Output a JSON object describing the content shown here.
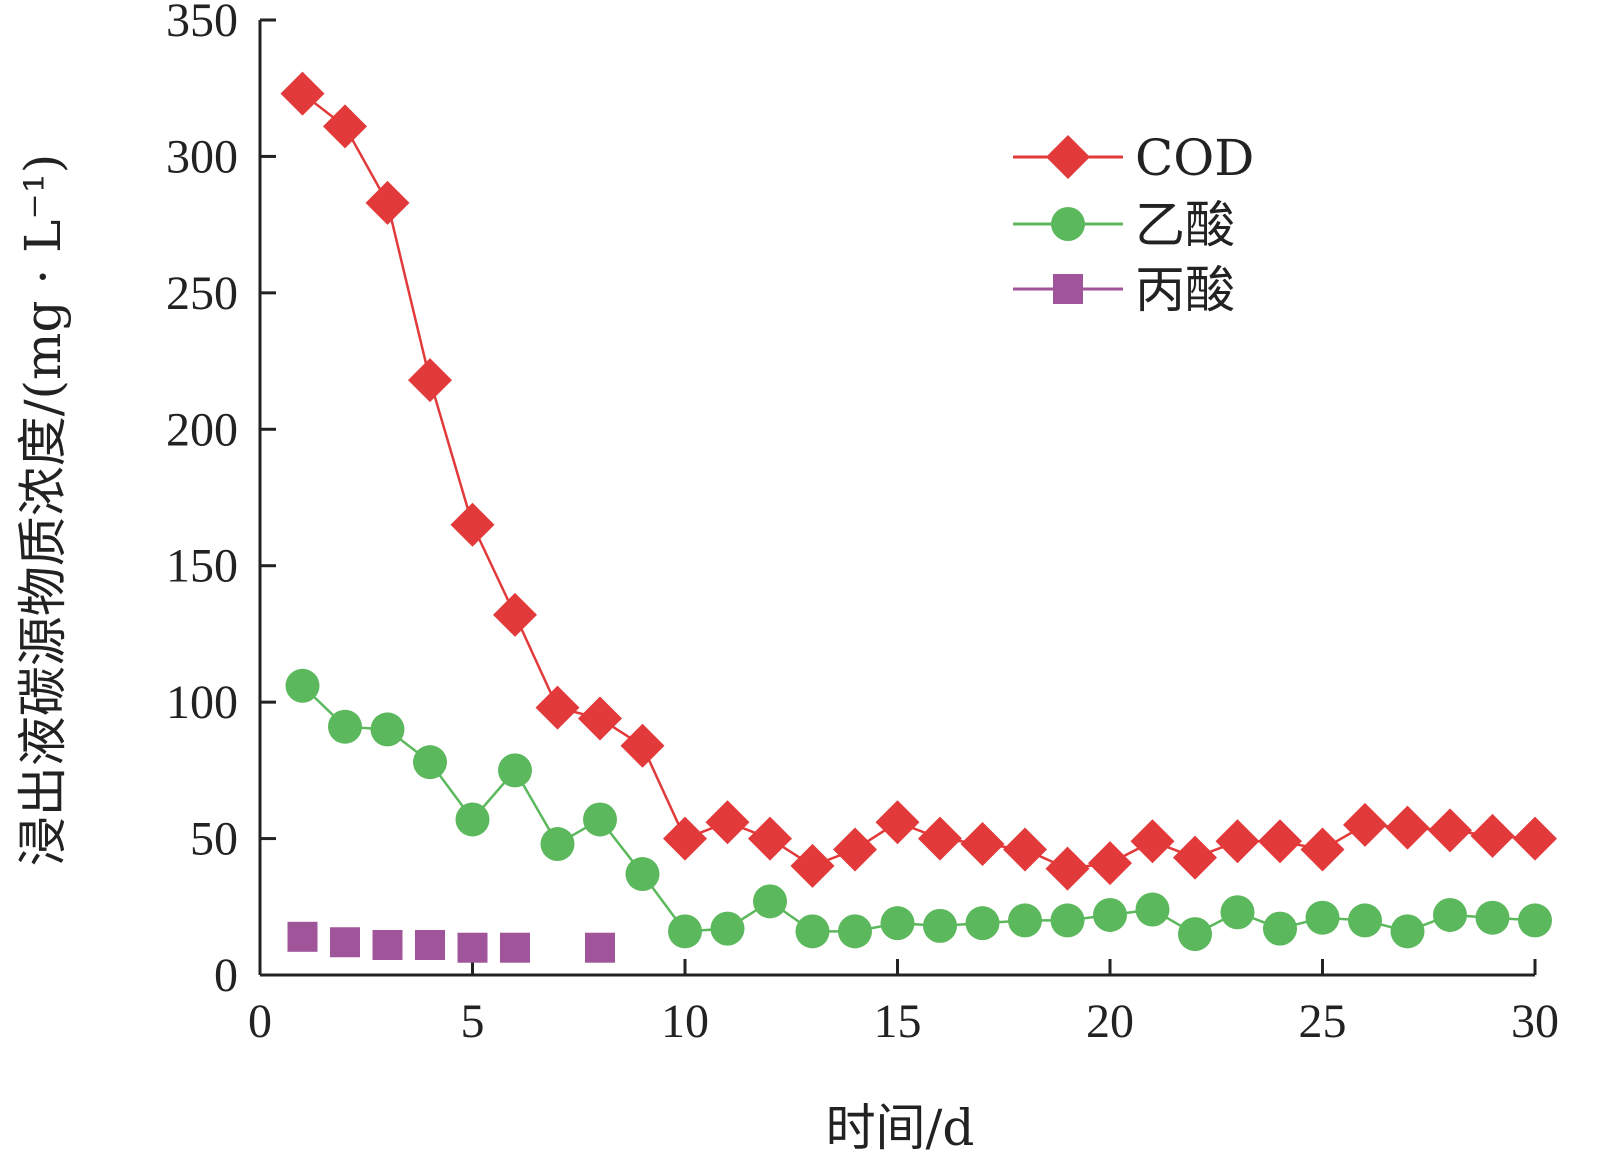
{
  "chart_data": {
    "type": "line",
    "title": "",
    "xlabel": "时间/d",
    "ylabel": "浸出液碳源物质浓度/(mg · L⁻¹)",
    "xlim": [
      0,
      30
    ],
    "ylim": [
      0,
      350
    ],
    "xticks": [
      0,
      5,
      10,
      15,
      20,
      25,
      30
    ],
    "yticks": [
      0,
      50,
      100,
      150,
      200,
      250,
      300,
      350
    ],
    "grid": false,
    "legend_position": "top-right",
    "series": [
      {
        "name": "COD",
        "color": "#e23a3a",
        "marker": "diamond",
        "x": [
          1,
          2,
          3,
          4,
          5,
          6,
          7,
          8,
          9,
          10,
          11,
          12,
          13,
          14,
          15,
          16,
          17,
          18,
          19,
          20,
          21,
          22,
          23,
          24,
          25,
          26,
          27,
          28,
          29,
          30
        ],
        "values": [
          323,
          311,
          283,
          218,
          165,
          132,
          98,
          94,
          84,
          50,
          56,
          50,
          40,
          46,
          56,
          50,
          48,
          46,
          39,
          41,
          49,
          43,
          49,
          49,
          46,
          55,
          54,
          53,
          51,
          50
        ]
      },
      {
        "name": "乙酸",
        "color": "#5cb85c",
        "marker": "circle",
        "x": [
          1,
          2,
          3,
          4,
          5,
          6,
          7,
          8,
          9,
          10,
          11,
          12,
          13,
          14,
          15,
          16,
          17,
          18,
          19,
          20,
          21,
          22,
          23,
          24,
          25,
          26,
          27,
          28,
          29,
          30
        ],
        "values": [
          106,
          91,
          90,
          78,
          57,
          75,
          48,
          57,
          37,
          16,
          17,
          27,
          16,
          16,
          19,
          18,
          19,
          20,
          20,
          22,
          24,
          15,
          23,
          17,
          21,
          20,
          16,
          22,
          21,
          20
        ]
      },
      {
        "name": "丙酸",
        "color": "#a0559a",
        "marker": "square",
        "x": [
          1,
          2,
          3,
          4,
          5,
          6,
          8
        ],
        "values": [
          14,
          12,
          11,
          11,
          10,
          10,
          10
        ]
      }
    ]
  }
}
